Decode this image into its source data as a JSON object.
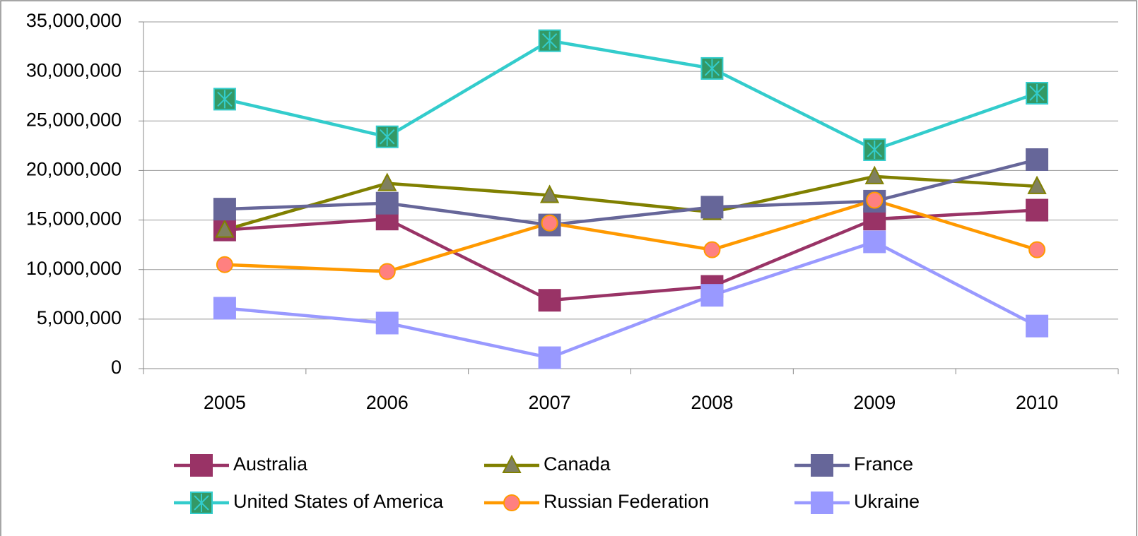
{
  "chart_data": {
    "type": "line",
    "categories": [
      "2005",
      "2006",
      "2007",
      "2008",
      "2009",
      "2010"
    ],
    "series": [
      {
        "name": "Australia",
        "color": "#993366",
        "marker": "square",
        "marker_color": "#993366",
        "values": [
          14.0,
          15.1,
          6.9,
          8.3,
          15.1,
          16.0
        ]
      },
      {
        "name": "Canada",
        "color": "#808000",
        "marker": "triangle",
        "marker_color": "#808060",
        "values": [
          14.0,
          18.7,
          17.5,
          15.8,
          19.4,
          18.4
        ]
      },
      {
        "name": "France",
        "color": "#666699",
        "marker": "square",
        "marker_color": "#666699",
        "values": [
          16.1,
          16.7,
          14.5,
          16.3,
          16.9,
          21.1
        ]
      },
      {
        "name": "United States of America",
        "color": "#33cccc",
        "marker": "star-square",
        "marker_color": "#339966",
        "values": [
          27.2,
          23.4,
          33.1,
          30.3,
          22.1,
          27.8
        ]
      },
      {
        "name": "Russian Federation",
        "color": "#ff9900",
        "marker": "circle",
        "marker_color": "#ff8080",
        "values": [
          10.5,
          9.8,
          14.7,
          12.0,
          17.0,
          12.0
        ]
      },
      {
        "name": "Ukraine",
        "color": "#9999ff",
        "marker": "square",
        "marker_color": "#9999ff",
        "values": [
          6.1,
          4.6,
          1.1,
          7.4,
          12.8,
          4.3
        ]
      }
    ],
    "ylim": [
      0,
      35
    ],
    "yticks": [
      {
        "value": 0,
        "label": "0"
      },
      {
        "value": 5,
        "label": "5,000,000"
      },
      {
        "value": 10,
        "label": "10,000,000"
      },
      {
        "value": 15,
        "label": "15,000,000"
      },
      {
        "value": 20,
        "label": "20,000,000"
      },
      {
        "value": 25,
        "label": "25,000,000"
      },
      {
        "value": 30,
        "label": "30,000,000"
      },
      {
        "value": 35,
        "label": "35,000,000"
      }
    ],
    "grid": true,
    "legend": "bottom"
  }
}
